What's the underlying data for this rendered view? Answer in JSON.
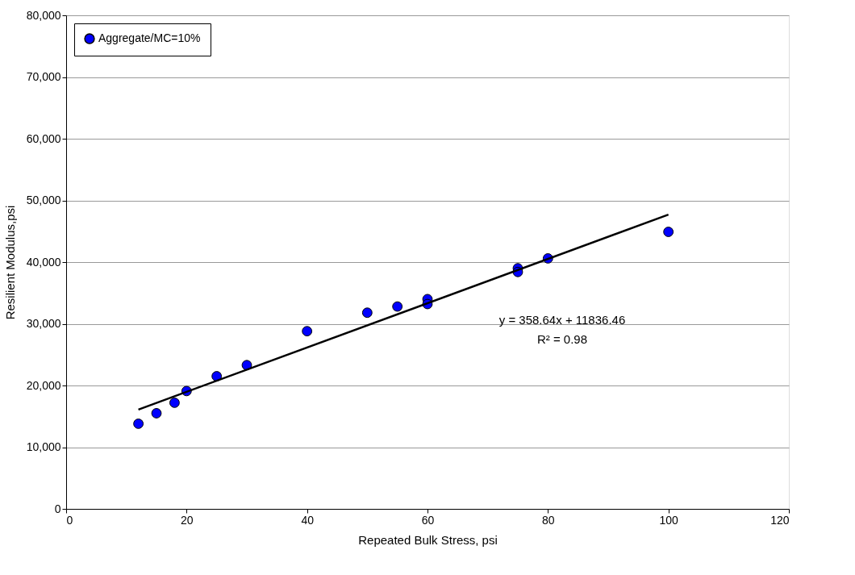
{
  "chart_data": {
    "type": "scatter",
    "xlabel": "Repeated Bulk Stress, psi",
    "ylabel": "Resilient Modulus,psi",
    "xlim": [
      0,
      120
    ],
    "xticks": [
      0,
      20,
      40,
      60,
      80,
      100,
      120
    ],
    "ylim": [
      0,
      80000
    ],
    "yticks": [
      {
        "value": 0,
        "label": "0"
      },
      {
        "value": 10000,
        "label": "10,000"
      },
      {
        "value": 20000,
        "label": "20,000"
      },
      {
        "value": 30000,
        "label": "30,000"
      },
      {
        "value": 40000,
        "label": "40,000"
      },
      {
        "value": 50000,
        "label": "50,000"
      },
      {
        "value": 60000,
        "label": "60,000"
      },
      {
        "value": 70000,
        "label": "70,000"
      },
      {
        "value": 80000,
        "label": "80,000"
      }
    ],
    "grid": "y",
    "legend": "top left",
    "series": [
      {
        "name": "Aggregate/MC=10%",
        "marker": "circle",
        "color": "#0000ff",
        "x": [
          12,
          15,
          18,
          20,
          25,
          30,
          40,
          50,
          55,
          60,
          60,
          75,
          75,
          80,
          100
        ],
        "values": [
          13800,
          15500,
          17200,
          19100,
          21500,
          23300,
          28800,
          31800,
          32800,
          34000,
          33200,
          39000,
          38400,
          40600,
          44900
        ]
      },
      {
        "type": "line",
        "marker": "none",
        "line_style": "solid",
        "color": "#000000",
        "x": [
          12,
          100
        ],
        "values": [
          16100,
          47700
        ]
      }
    ],
    "annotations": [
      "y = 358.64x + 11836.46",
      "R² = 0.98"
    ]
  }
}
